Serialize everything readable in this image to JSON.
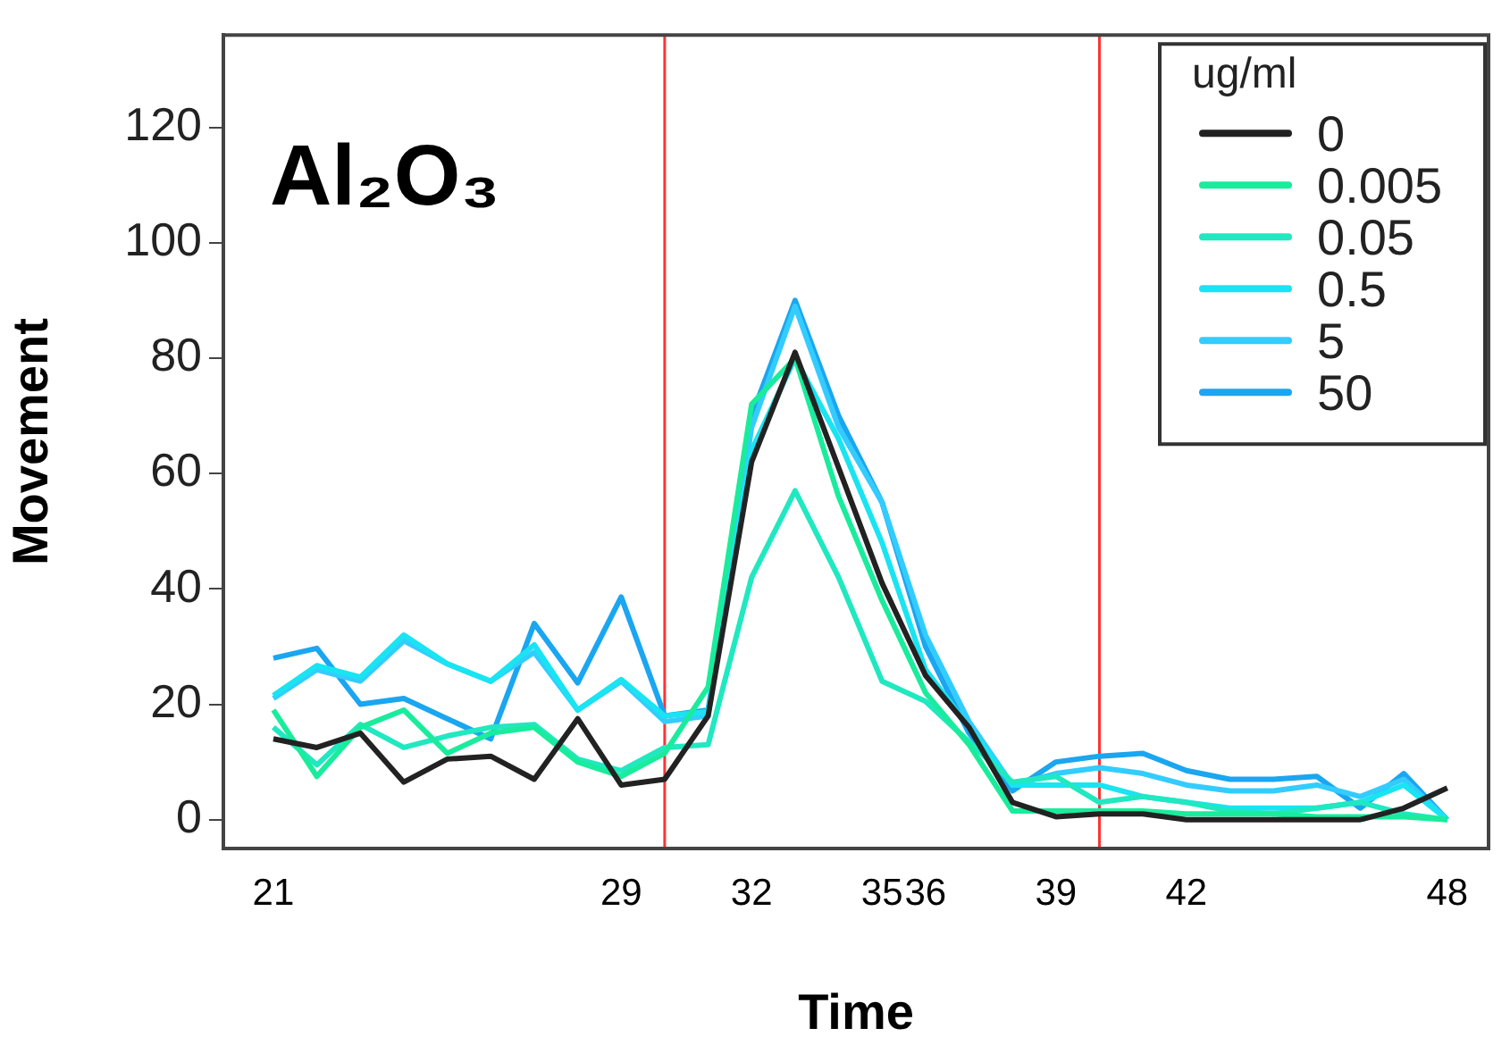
{
  "chart_data": {
    "type": "line",
    "xlabel": "Time",
    "ylabel": "Movement",
    "legend_title": "ug/ml",
    "legend": "top right",
    "annotations": [
      "Al₂O₃"
    ],
    "x": [
      21,
      22,
      23,
      24,
      25,
      26,
      27,
      28,
      29,
      30,
      31,
      32,
      33,
      34,
      35,
      36,
      37,
      38,
      39,
      40,
      41,
      42,
      43,
      44,
      45,
      46,
      47,
      48
    ],
    "series": [
      {
        "name": "0",
        "color": "#222222",
        "values": [
          14,
          12.5,
          15,
          6.5,
          10.5,
          11,
          7,
          17.5,
          6,
          7,
          18,
          62,
          81,
          61,
          41,
          25,
          16,
          3,
          0.5,
          1,
          1,
          0,
          0,
          0,
          0,
          0,
          2,
          5.5
        ]
      },
      {
        "name": "0.005",
        "color": "#19ec9c",
        "values": [
          19,
          7.5,
          16,
          19,
          11.5,
          15,
          16,
          10,
          7.5,
          11.5,
          23,
          72,
          80,
          56,
          38,
          22,
          13,
          1.5,
          1.5,
          1.5,
          1.5,
          1,
          1,
          1,
          0.5,
          0.5,
          0.5,
          0
        ]
      },
      {
        "name": "0.05",
        "color": "#20e8c0",
        "values": [
          16,
          9.5,
          16.5,
          12.5,
          14.5,
          16,
          16.5,
          10.5,
          8.5,
          12.5,
          13,
          42,
          57,
          42,
          24,
          20.5,
          13.5,
          6.5,
          7.5,
          3,
          4,
          3,
          1.5,
          1,
          2,
          3,
          1,
          0
        ]
      },
      {
        "name": "0.5",
        "color": "#19e4f2",
        "values": [
          21.5,
          26.7,
          24.7,
          32,
          27,
          24,
          30.3,
          19,
          24.3,
          18,
          18.7,
          64,
          80,
          66,
          48,
          26,
          16,
          6,
          6,
          6,
          4,
          3,
          2,
          2,
          2,
          3,
          6,
          0
        ]
      },
      {
        "name": "5",
        "color": "#33ccff",
        "values": [
          21,
          26,
          24,
          31,
          27,
          24,
          29,
          19,
          24,
          17,
          18,
          68,
          89,
          68,
          55,
          32,
          17,
          6,
          8,
          9,
          8,
          6,
          5,
          5,
          6,
          4,
          7,
          0
        ]
      },
      {
        "name": "50",
        "color": "#1aa6f0",
        "values": [
          28,
          29.7,
          20,
          21,
          17.5,
          14,
          34,
          23.7,
          38.6,
          18,
          19,
          70,
          90,
          70,
          55,
          30,
          15,
          5,
          10,
          11,
          11.5,
          8.5,
          7,
          7,
          7.5,
          2,
          8,
          0
        ]
      }
    ],
    "xlim": [
      19.85,
      48.95
    ],
    "xticks": [
      21,
      29,
      32,
      35,
      36,
      39,
      42,
      48
    ],
    "ylim": [
      -5,
      136
    ],
    "yticks": [
      0,
      20,
      40,
      60,
      80,
      100,
      120
    ],
    "ref_lines": [
      {
        "axis": "x",
        "value": 30,
        "color": "#ff3333"
      },
      {
        "axis": "x",
        "value": 40,
        "color": "#ff3333"
      }
    ],
    "grid": false,
    "marker": "none",
    "line_style": "solid"
  }
}
